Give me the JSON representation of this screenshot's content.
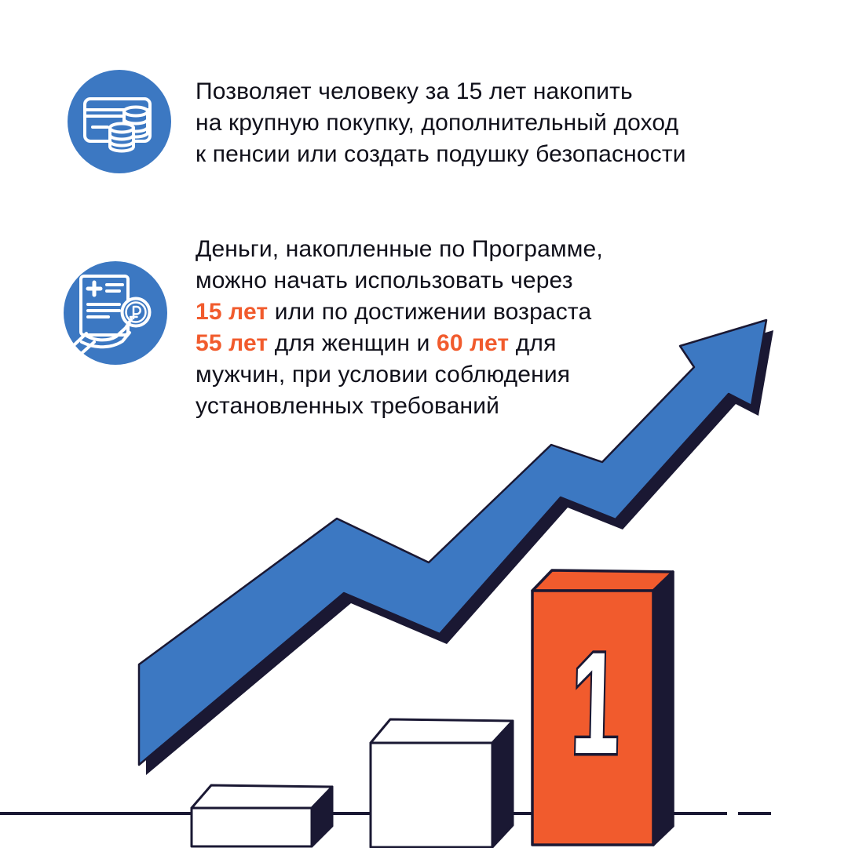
{
  "page": {
    "background": "#FFFFFF",
    "language": "ru"
  },
  "colors": {
    "blue": "#3C78C2",
    "navy": "#1A1833",
    "orange": "#F15B2D",
    "text": "#10101A",
    "white": "#FFFFFF"
  },
  "benefits": [
    {
      "icon": "card-coins-icon",
      "lines": [
        [
          {
            "t": "Позволяет человеку за 15 лет накопить",
            "h": false
          }
        ],
        [
          {
            "t": "на крупную покупку, дополнительный доход",
            "h": false
          }
        ],
        [
          {
            "t": "к пенсии или создать подушку безопасности",
            "h": false
          }
        ]
      ]
    },
    {
      "icon": "document-ruble-hand-icon",
      "lines": [
        [
          {
            "t": "Деньги, накопленные по Программе,",
            "h": false
          }
        ],
        [
          {
            "t": "можно начать использовать через",
            "h": false
          }
        ],
        [
          {
            "t": "15 лет",
            "h": true
          },
          {
            "t": " или по достижении возраста",
            "h": false
          }
        ],
        [
          {
            "t": "55 лет",
            "h": true
          },
          {
            "t": " для женщин и ",
            "h": false
          },
          {
            "t": "60 лет",
            "h": true
          },
          {
            "t": " для",
            "h": false
          }
        ],
        [
          {
            "t": "мужчин, при условии соблюдения",
            "h": false
          }
        ],
        [
          {
            "t": "установленных требований",
            "h": false
          }
        ]
      ]
    }
  ],
  "illustration": {
    "arrow": "growth-zigzag-arrow",
    "ground": "dashed-ground-line",
    "podium": {
      "rank_label": "1",
      "blocks": [
        "small-white-block",
        "medium-white-block",
        "orange-first-place-block"
      ]
    }
  }
}
